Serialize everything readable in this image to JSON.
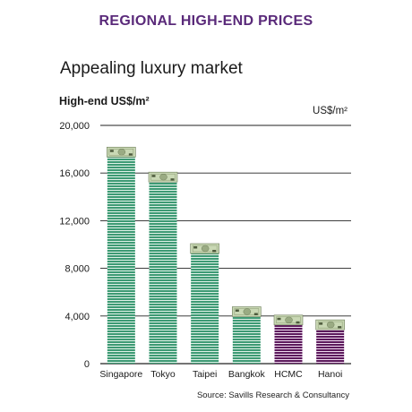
{
  "header": "REGIONAL HIGH-END PRICES",
  "source": "Source: Savills Research & Consultancy",
  "colors": {
    "header": "#5a2a7a",
    "bar_green": "#3d9a74",
    "bar_green_light": "#dff1e7",
    "bar_purple": "#5c1a5c",
    "bar_purple_light": "#efdbef",
    "banknote": "#c9d8b4"
  },
  "chart_data": {
    "type": "bar",
    "title": "Appealing luxury market",
    "ylabel": "High-end US$/m²",
    "unit_label": "US$/m²",
    "categories": [
      "Singapore",
      "Tokyo",
      "Taipei",
      "Bangkok",
      "HCMC",
      "Hanoi"
    ],
    "values": [
      17800,
      15700,
      9700,
      4400,
      3700,
      3300
    ],
    "bar_colors": [
      "green",
      "green",
      "green",
      "green",
      "purple",
      "purple"
    ],
    "ylim": [
      0,
      20000
    ],
    "yticks": [
      0,
      4000,
      8000,
      12000,
      16000,
      20000
    ],
    "ytick_labels": [
      "0",
      "4,000",
      "8,000",
      "12,000",
      "16,000",
      "20,000"
    ],
    "grid": true,
    "legend": "none",
    "bar_top_icon": "banknote-icon"
  }
}
